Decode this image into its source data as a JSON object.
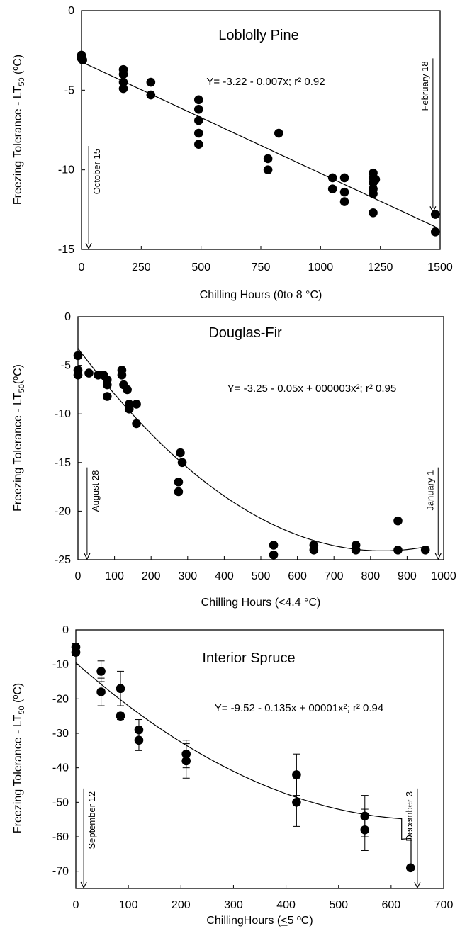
{
  "chart_data": [
    {
      "type": "scatter",
      "title": "Loblolly Pine",
      "xlabel": "Chilling Hours (0to 8 °C)",
      "ylabel": {
        "pre": "Freezing Tolerance - LT",
        "sub": "50",
        "post": " (ºC)"
      },
      "equation": "Y= -3.22 - 0.007x; r² 0.92",
      "xlim": [
        0,
        1500
      ],
      "ylim": [
        -15,
        0
      ],
      "xticks": [
        "0",
        "250",
        "500",
        "750",
        "1000",
        "1250",
        "1500"
      ],
      "xtick_values": [
        0,
        250,
        500,
        750,
        1000,
        1250,
        1500
      ],
      "yticks": [
        "0",
        "-5",
        "-10",
        "-15"
      ],
      "ytick_values": [
        0,
        -5,
        -10,
        -15
      ],
      "fit": {
        "kind": "linear",
        "coef": [
          -3.22,
          -0.007,
          0
        ],
        "x_range": [
          0,
          1480
        ]
      },
      "annotations": [
        {
          "text": "October 15",
          "x": 30,
          "arrow": "down",
          "y_from": -8.5,
          "y_to": -15,
          "side": "right"
        },
        {
          "text": "February 18",
          "x": 1470,
          "arrow": "down",
          "y_from": -3.0,
          "y_to": -12.7,
          "side": "left"
        }
      ],
      "points": [
        {
          "x": 0,
          "y": -2.8
        },
        {
          "x": 0,
          "y": -3.0
        },
        {
          "x": 5,
          "y": -3.1
        },
        {
          "x": 175,
          "y": -3.7
        },
        {
          "x": 175,
          "y": -4.0
        },
        {
          "x": 175,
          "y": -4.9
        },
        {
          "x": 175,
          "y": -4.5
        },
        {
          "x": 290,
          "y": -4.5
        },
        {
          "x": 290,
          "y": -5.3
        },
        {
          "x": 490,
          "y": -5.6
        },
        {
          "x": 490,
          "y": -6.2
        },
        {
          "x": 490,
          "y": -6.9
        },
        {
          "x": 490,
          "y": -7.7
        },
        {
          "x": 490,
          "y": -8.4
        },
        {
          "x": 780,
          "y": -9.3
        },
        {
          "x": 780,
          "y": -10.0
        },
        {
          "x": 825,
          "y": -7.7
        },
        {
          "x": 1050,
          "y": -10.5
        },
        {
          "x": 1050,
          "y": -11.2
        },
        {
          "x": 1100,
          "y": -10.5
        },
        {
          "x": 1100,
          "y": -11.4
        },
        {
          "x": 1100,
          "y": -12.0
        },
        {
          "x": 1220,
          "y": -10.2
        },
        {
          "x": 1220,
          "y": -10.5
        },
        {
          "x": 1220,
          "y": -10.8
        },
        {
          "x": 1220,
          "y": -11.2
        },
        {
          "x": 1220,
          "y": -11.5
        },
        {
          "x": 1220,
          "y": -12.7
        },
        {
          "x": 1230,
          "y": -10.6
        },
        {
          "x": 1480,
          "y": -12.8
        },
        {
          "x": 1480,
          "y": -13.9
        }
      ]
    },
    {
      "type": "scatter",
      "title": "Douglas-Fir",
      "xlabel": "Chilling  Hours  (<4.4 °C)",
      "ylabel": {
        "pre": "Freezing Tolerance - LT",
        "sub": "50",
        "post": "(ºC)"
      },
      "equation": "Y= -3.25 - 0.05x + 000003x²; r² 0.95",
      "xlim": [
        0,
        1000
      ],
      "ylim": [
        -25,
        0
      ],
      "xticks": [
        "0",
        "100",
        "200",
        "300",
        "400",
        "500",
        "600",
        "700",
        "800",
        "900",
        "1000"
      ],
      "xtick_values": [
        0,
        100,
        200,
        300,
        400,
        500,
        600,
        700,
        800,
        900,
        1000
      ],
      "yticks": [
        "0",
        "-5",
        "-10",
        "-15",
        "-20",
        "-25"
      ],
      "ytick_values": [
        0,
        -5,
        -10,
        -15,
        -20,
        -25
      ],
      "fit": {
        "kind": "quadratic",
        "coef": [
          -3.25,
          -0.05,
          3e-05
        ],
        "x_range": [
          0,
          960
        ]
      },
      "annotations": [
        {
          "text": "August 28",
          "x": 25,
          "arrow": "down",
          "y_from": -15.5,
          "y_to": -25,
          "side": "right"
        },
        {
          "text": "January 1",
          "x": 985,
          "arrow": "down",
          "y_from": -15.5,
          "y_to": -25,
          "side": "left"
        }
      ],
      "points": [
        {
          "x": 0,
          "y": -4.0
        },
        {
          "x": 0,
          "y": -5.5
        },
        {
          "x": 0,
          "y": -6.0
        },
        {
          "x": 30,
          "y": -5.8
        },
        {
          "x": 55,
          "y": -6.0
        },
        {
          "x": 70,
          "y": -6.0
        },
        {
          "x": 80,
          "y": -6.5
        },
        {
          "x": 80,
          "y": -7.0
        },
        {
          "x": 80,
          "y": -8.2
        },
        {
          "x": 120,
          "y": -5.5
        },
        {
          "x": 120,
          "y": -6.0
        },
        {
          "x": 125,
          "y": -7.0
        },
        {
          "x": 135,
          "y": -7.5
        },
        {
          "x": 140,
          "y": -9.0
        },
        {
          "x": 140,
          "y": -9.5
        },
        {
          "x": 160,
          "y": -9.0
        },
        {
          "x": 160,
          "y": -11.0
        },
        {
          "x": 275,
          "y": -17.0
        },
        {
          "x": 275,
          "y": -18.0
        },
        {
          "x": 280,
          "y": -14.0
        },
        {
          "x": 285,
          "y": -15.0
        },
        {
          "x": 535,
          "y": -23.5
        },
        {
          "x": 535,
          "y": -24.5
        },
        {
          "x": 645,
          "y": -23.5
        },
        {
          "x": 645,
          "y": -24.0
        },
        {
          "x": 760,
          "y": -23.5
        },
        {
          "x": 760,
          "y": -24.0
        },
        {
          "x": 875,
          "y": -21.0
        },
        {
          "x": 875,
          "y": -24.0
        },
        {
          "x": 950,
          "y": -24.0
        }
      ]
    },
    {
      "type": "scatter",
      "title": "Interior Spruce",
      "xlabel": {
        "pre": "ChillingHours (",
        "ul": "<",
        "post": "5 ºC)"
      },
      "ylabel": {
        "pre": "Freezing Tolerance - LT",
        "sub": "50",
        "post": " (ºC)"
      },
      "equation": "Y= -9.52 - 0.135x + 00001x²; r² 0.94",
      "xlim": [
        0,
        700
      ],
      "ylim": [
        -75,
        0
      ],
      "xticks": [
        "0",
        "100",
        "200",
        "300",
        "400",
        "500",
        "600",
        "700"
      ],
      "xtick_values": [
        0,
        100,
        200,
        300,
        400,
        500,
        600,
        700
      ],
      "yticks": [
        "0",
        "-10",
        "-20",
        "-30",
        "-40",
        "-50",
        "-60",
        "-70"
      ],
      "ytick_values": [
        0,
        -10,
        -20,
        -30,
        -40,
        -50,
        -60,
        -70
      ],
      "fit": {
        "kind": "quadratic",
        "coef": [
          -9.52,
          -0.135,
          0.0001
        ],
        "x_range": [
          0,
          620
        ],
        "tail": [
          [
            620,
            -60.7
          ],
          [
            638,
            -60.5
          ],
          [
            638,
            -69.0
          ]
        ]
      },
      "annotations": [
        {
          "text": "September 12",
          "x": 15,
          "arrow": "down",
          "y_from": -46,
          "y_to": -75,
          "side": "right"
        },
        {
          "text": "December 3",
          "x": 650,
          "arrow": "down",
          "y_from": -46,
          "y_to": -75,
          "side": "left"
        }
      ],
      "points": [
        {
          "x": 0,
          "y": -5.0,
          "err": 1.0
        },
        {
          "x": 0,
          "y": -6.5,
          "err": 1.0
        },
        {
          "x": 48,
          "y": -12.0,
          "err": 3.0
        },
        {
          "x": 48,
          "y": -18.0,
          "err": 4.0
        },
        {
          "x": 85,
          "y": -17.0,
          "err": 5.0
        },
        {
          "x": 85,
          "y": -25.0,
          "err": 1.0
        },
        {
          "x": 120,
          "y": -29.0,
          "err": 3.0
        },
        {
          "x": 120,
          "y": -32.0,
          "err": 3.0
        },
        {
          "x": 210,
          "y": -36.0,
          "err": 4.0
        },
        {
          "x": 210,
          "y": -38.0,
          "err": 5.0
        },
        {
          "x": 420,
          "y": -42.0,
          "err": 6.0
        },
        {
          "x": 420,
          "y": -50.0,
          "err": 7.0
        },
        {
          "x": 550,
          "y": -54.0,
          "err": 6.0
        },
        {
          "x": 550,
          "y": -58.0,
          "err": 6.0
        },
        {
          "x": 637,
          "y": -69.0,
          "err": 0.5
        }
      ]
    }
  ]
}
